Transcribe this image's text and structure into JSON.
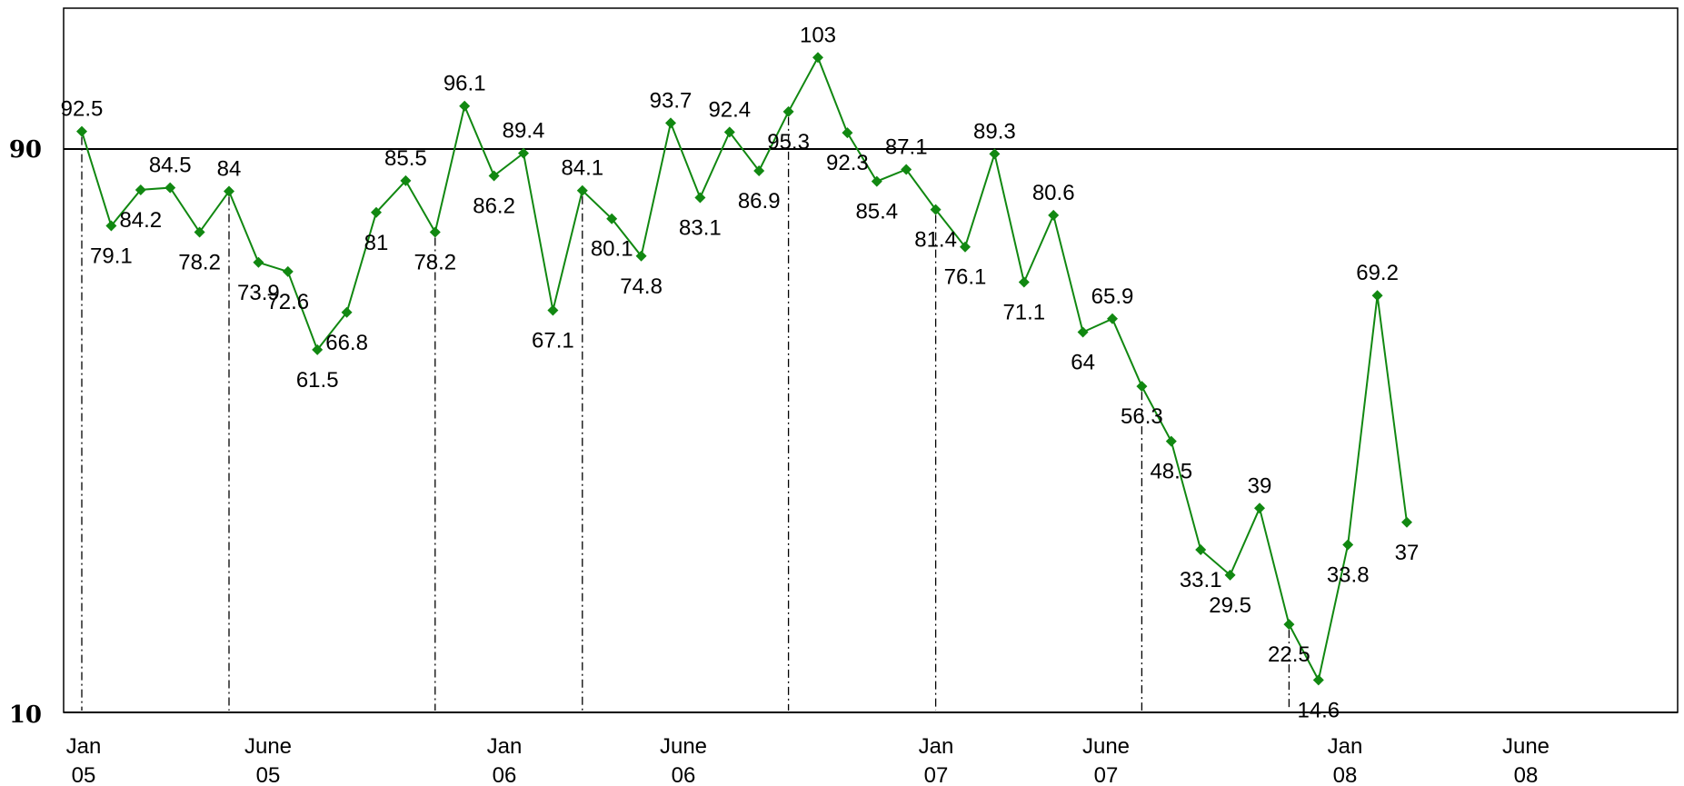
{
  "chart_data": {
    "type": "line",
    "title": "",
    "xlabel": "",
    "ylabel": "",
    "ylim": [
      10,
      115
    ],
    "y_ticks": [
      "90",
      "10"
    ],
    "reference_line": 90,
    "x_tick_labels": [
      {
        "line1": "Jan",
        "line2": "05"
      },
      {
        "line1": "June",
        "line2": "05"
      },
      {
        "line1": "Jan",
        "line2": "06"
      },
      {
        "line1": "June",
        "line2": "06"
      },
      {
        "line1": "Jan",
        "line2": "07"
      },
      {
        "line1": "June",
        "line2": "07"
      },
      {
        "line1": "Jan",
        "line2": "08"
      },
      {
        "line1": "June",
        "line2": "08"
      }
    ],
    "series": [
      {
        "color": "#118811",
        "values": [
          92.5,
          79.1,
          84.2,
          84.5,
          78.2,
          84,
          73.9,
          72.6,
          61.5,
          66.8,
          81,
          85.5,
          78.2,
          96.1,
          86.2,
          89.4,
          67.1,
          84.1,
          80.1,
          74.8,
          93.7,
          83.1,
          92.4,
          86.9,
          95.3,
          103,
          92.3,
          85.4,
          87.1,
          81.4,
          76.1,
          89.3,
          71.1,
          80.6,
          64,
          65.9,
          56.3,
          48.5,
          33.1,
          29.5,
          39,
          22.5,
          14.6,
          33.8,
          69.2,
          37
        ],
        "labels": [
          "92.5",
          "79.1",
          "84.2",
          "84.5",
          "78.2",
          "84",
          "73.9",
          "72.6",
          "61.5",
          "66.8",
          "81",
          "85.5",
          "78.2",
          "96.1",
          "86.2",
          "89.4",
          "67.1",
          "84.1",
          "80.1",
          "74.8",
          "93.7",
          "83.1",
          "92.4",
          "86.9",
          "95.3",
          "103",
          "92.3",
          "85.4",
          "87.1",
          "81.4",
          "76.1",
          "89.3",
          "71.1",
          "80.6",
          "64",
          "65.9",
          "56.3",
          "48.5",
          "33.1",
          "29.5",
          "39",
          "22.5",
          "14.6",
          "33.8",
          "69.2",
          "37"
        ]
      }
    ],
    "grid": false,
    "legend": "none"
  }
}
